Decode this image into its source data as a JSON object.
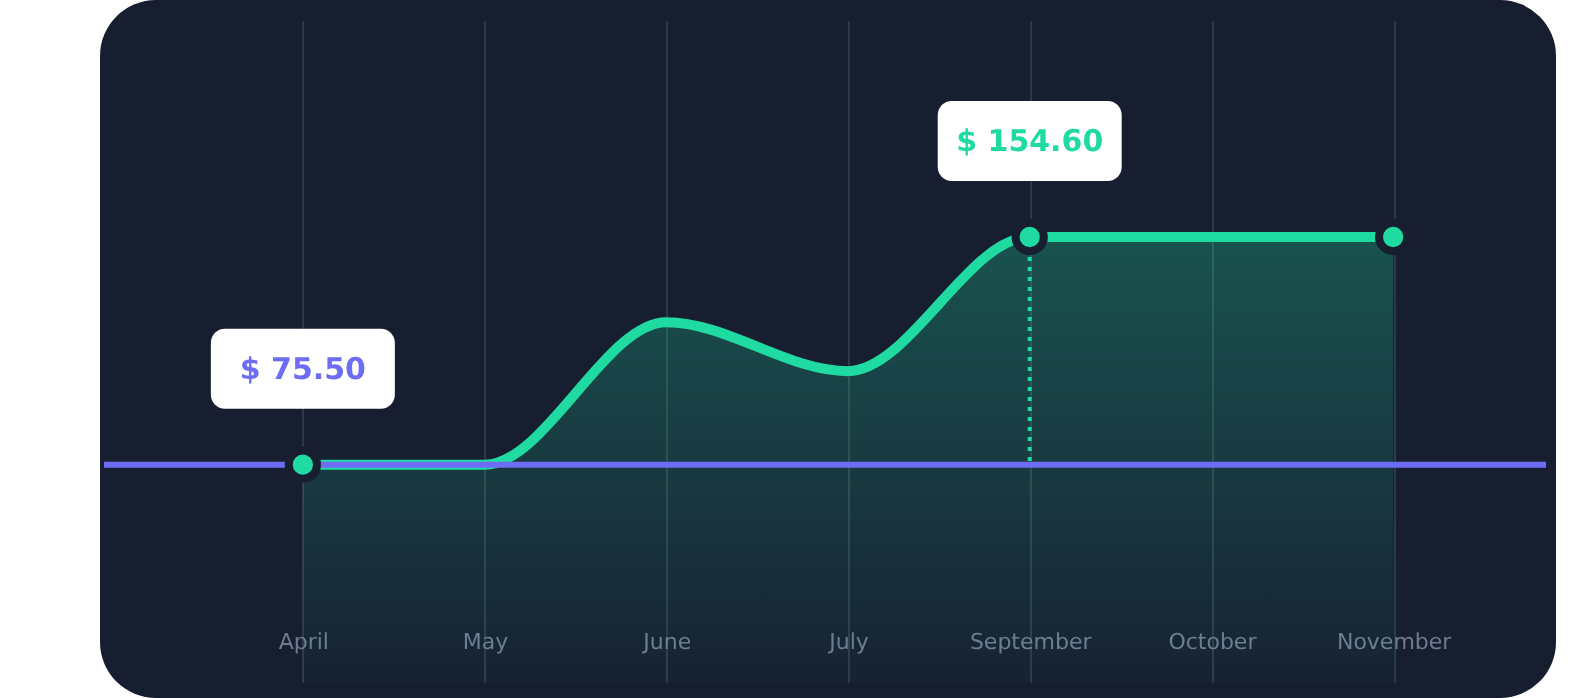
{
  "chart_data": {
    "type": "area",
    "categories": [
      "April",
      "May",
      "June",
      "July",
      "September",
      "October",
      "November"
    ],
    "series": [
      {
        "color": "#1fdba2",
        "values": [
          75.5,
          75.5,
          125,
          108,
          154.6,
          154.6,
          154.6
        ],
        "value_labels": [
          "$ 75.50",
          null,
          null,
          null,
          "$ 154.60",
          null,
          null
        ]
      }
    ],
    "ylim": [
      0,
      230
    ],
    "tick_labels": "x",
    "grid": "x",
    "ref_lines": [
      {
        "axis": "y",
        "value": 75.5,
        "color": "#6c6cf5",
        "line_style": "solid"
      },
      {
        "axis": "x",
        "value": "September",
        "color": "#1fdba2",
        "line_style": "dotted"
      }
    ]
  }
}
